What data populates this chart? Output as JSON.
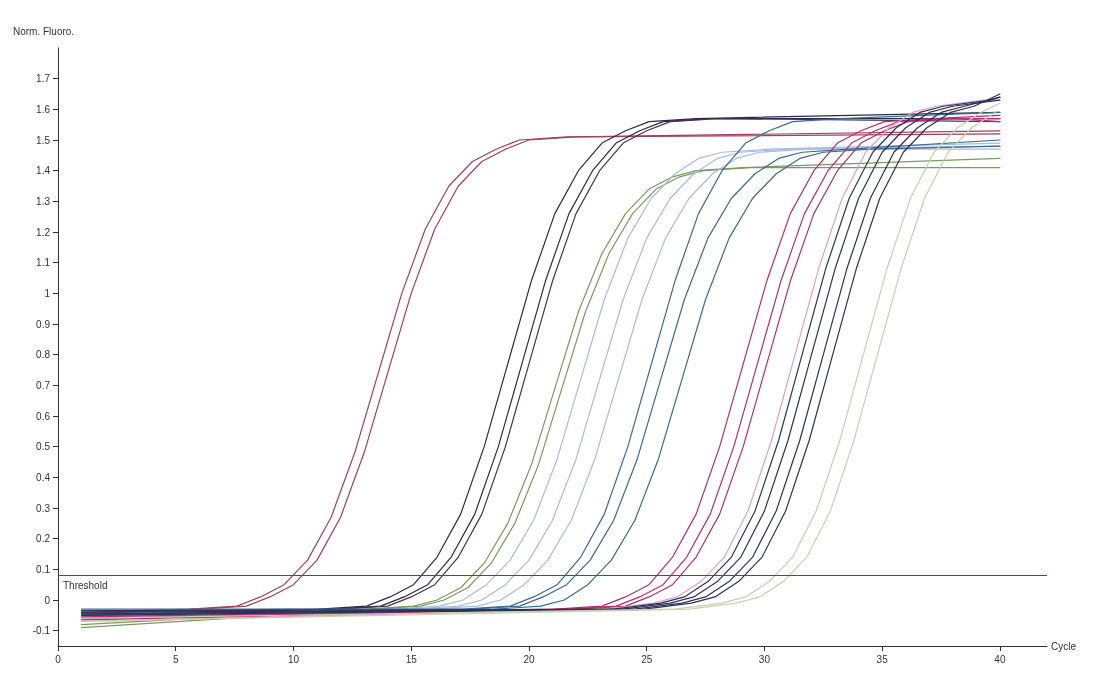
{
  "chart_data": {
    "type": "line",
    "xlabel": "Cycle",
    "ylabel": "Norm. Fluoro.",
    "xlim": [
      0,
      42
    ],
    "xticks": [
      0,
      5,
      10,
      15,
      20,
      25,
      30,
      35,
      40
    ],
    "ylim": [
      -0.15,
      1.8
    ],
    "yticks": [
      -0.1,
      0,
      0.1,
      0.2,
      0.3,
      0.4,
      0.5,
      0.6,
      0.7,
      0.8,
      0.9,
      1,
      1.1,
      1.2,
      1.3,
      1.4,
      1.5,
      1.6,
      1.7
    ],
    "grid": false,
    "marker": "none",
    "ref_lines": [
      {
        "axis": "y",
        "value": 0.08,
        "label": "Threshold",
        "color": "#8a3048"
      }
    ],
    "series": [
      {
        "color": "#a0405a",
        "x": [
          1,
          5.6,
          7.6,
          8.6,
          9.6,
          10.6,
          11.6,
          12.6,
          13.6,
          14.6,
          15.6,
          16.6,
          17.6,
          18.6,
          19.6,
          21.6,
          40
        ],
        "values": [
          -0.04,
          -0.03,
          -0.02,
          0.01,
          0.05,
          0.13,
          0.27,
          0.48,
          0.74,
          1.0,
          1.21,
          1.35,
          1.43,
          1.47,
          1.5,
          1.51,
          1.52
        ]
      },
      {
        "color": "#a0405a",
        "x": [
          1,
          6,
          8,
          9,
          10,
          11,
          12,
          13,
          14,
          15,
          16,
          17,
          18,
          19,
          20,
          22,
          40
        ],
        "values": [
          -0.045,
          -0.03,
          -0.02,
          0.01,
          0.05,
          0.13,
          0.27,
          0.48,
          0.74,
          1.0,
          1.21,
          1.35,
          1.43,
          1.47,
          1.5,
          1.51,
          1.53
        ]
      },
      {
        "color": "#2a2a4a",
        "x": [
          1,
          11.1,
          13.1,
          14.1,
          15.1,
          16.1,
          17.1,
          18.1,
          19.1,
          20.1,
          21.1,
          22.1,
          23.1,
          24.1,
          25.1,
          27.1,
          40
        ],
        "values": [
          -0.035,
          -0.03,
          -0.02,
          0.01,
          0.05,
          0.14,
          0.28,
          0.5,
          0.77,
          1.04,
          1.26,
          1.4,
          1.49,
          1.53,
          1.56,
          1.57,
          1.59
        ]
      },
      {
        "color": "#2a2a4a",
        "x": [
          1,
          11.7,
          13.7,
          14.7,
          15.7,
          16.7,
          17.7,
          18.7,
          19.7,
          20.7,
          21.7,
          22.7,
          23.7,
          24.7,
          25.7,
          27.7,
          40
        ],
        "values": [
          -0.05,
          -0.03,
          -0.02,
          0.01,
          0.05,
          0.14,
          0.28,
          0.5,
          0.77,
          1.04,
          1.26,
          1.4,
          1.49,
          1.53,
          1.56,
          1.57,
          1.57
        ]
      },
      {
        "color": "#4a3050",
        "x": [
          1,
          12,
          14,
          15,
          16,
          17,
          18,
          19,
          20,
          21,
          22,
          23,
          24,
          25,
          26,
          28,
          40
        ],
        "values": [
          -0.04,
          -0.03,
          -0.02,
          0.01,
          0.05,
          0.14,
          0.28,
          0.5,
          0.77,
          1.04,
          1.26,
          1.4,
          1.49,
          1.53,
          1.56,
          1.57,
          1.56
        ]
      },
      {
        "color": "#7a9a60",
        "x": [
          1,
          13.1,
          15.1,
          16.1,
          17.1,
          18.1,
          19.1,
          20.1,
          21.1,
          22.1,
          23.1,
          24.1,
          25.1,
          26.1,
          27.1,
          29.1,
          40
        ],
        "values": [
          -0.08,
          -0.03,
          -0.02,
          0.0,
          0.04,
          0.12,
          0.25,
          0.44,
          0.69,
          0.94,
          1.13,
          1.26,
          1.34,
          1.38,
          1.4,
          1.41,
          1.44
        ]
      },
      {
        "color": "#7a9a60",
        "x": [
          1,
          13.4,
          15.4,
          16.4,
          17.4,
          18.4,
          19.4,
          20.4,
          21.4,
          22.4,
          23.4,
          24.4,
          25.4,
          26.4,
          27.4,
          29.4,
          40
        ],
        "values": [
          -0.09,
          -0.03,
          -0.02,
          0.0,
          0.04,
          0.12,
          0.25,
          0.44,
          0.69,
          0.94,
          1.13,
          1.26,
          1.34,
          1.38,
          1.4,
          1.41,
          1.41
        ]
      },
      {
        "color": "#a8bce0",
        "x": [
          1,
          14.2,
          16.2,
          17.2,
          18.2,
          19.2,
          20.2,
          21.2,
          22.2,
          23.2,
          24.2,
          25.2,
          26.2,
          27.2,
          28.2,
          30.2,
          40
        ],
        "values": [
          -0.055,
          -0.03,
          -0.02,
          0.0,
          0.05,
          0.13,
          0.26,
          0.46,
          0.72,
          0.98,
          1.18,
          1.31,
          1.39,
          1.44,
          1.46,
          1.47,
          1.49
        ]
      },
      {
        "color": "#a8bce0",
        "x": [
          1,
          15,
          17,
          18,
          19,
          20,
          21,
          22,
          23,
          24,
          25,
          26,
          27,
          28,
          29,
          31,
          40
        ],
        "values": [
          -0.06,
          -0.03,
          -0.02,
          0.0,
          0.05,
          0.13,
          0.26,
          0.46,
          0.72,
          0.98,
          1.18,
          1.31,
          1.39,
          1.44,
          1.46,
          1.47,
          1.48
        ]
      },
      {
        "color": "#a8bce0",
        "x": [
          1,
          15.8,
          17.8,
          18.8,
          19.8,
          20.8,
          21.8,
          22.8,
          23.8,
          24.8,
          25.8,
          26.8,
          27.8,
          28.8,
          29.8,
          31.8,
          40
        ],
        "values": [
          -0.065,
          -0.03,
          -0.02,
          0.0,
          0.05,
          0.13,
          0.26,
          0.46,
          0.72,
          0.98,
          1.18,
          1.31,
          1.39,
          1.44,
          1.46,
          1.47,
          1.47
        ]
      },
      {
        "color": "#3a6a90",
        "x": [
          1,
          17.2,
          19.2,
          20.2,
          21.2,
          22.2,
          23.2,
          24.2,
          25.2,
          26.2,
          27.2,
          28.2,
          29.2,
          30.2,
          31.2,
          33.2,
          40
        ],
        "values": [
          -0.03,
          -0.03,
          -0.02,
          0.01,
          0.05,
          0.14,
          0.28,
          0.5,
          0.77,
          1.04,
          1.26,
          1.4,
          1.49,
          1.53,
          1.56,
          1.57,
          1.59
        ]
      },
      {
        "color": "#3a6a90",
        "x": [
          1,
          17.6,
          19.6,
          20.6,
          21.6,
          22.6,
          23.6,
          24.6,
          25.6,
          26.6,
          27.6,
          28.6,
          29.6,
          30.6,
          31.6,
          33.6,
          40
        ],
        "values": [
          -0.045,
          -0.03,
          -0.02,
          0.01,
          0.05,
          0.13,
          0.26,
          0.46,
          0.72,
          0.98,
          1.18,
          1.31,
          1.39,
          1.44,
          1.46,
          1.47,
          1.5
        ]
      },
      {
        "color": "#3a6a90",
        "x": [
          1,
          18.5,
          20.5,
          21.5,
          22.5,
          23.5,
          24.5,
          25.5,
          26.5,
          27.5,
          28.5,
          29.5,
          30.5,
          31.5,
          32.5,
          34.5,
          40
        ],
        "values": [
          -0.05,
          -0.03,
          -0.02,
          0.0,
          0.05,
          0.13,
          0.26,
          0.46,
          0.72,
          0.98,
          1.18,
          1.31,
          1.39,
          1.44,
          1.46,
          1.47,
          1.48
        ]
      },
      {
        "color": "#b03070",
        "x": [
          1,
          21.1,
          23.1,
          24.1,
          25.1,
          26.1,
          27.1,
          28.1,
          29.1,
          30.1,
          31.1,
          32.1,
          33.1,
          34.1,
          35.1,
          37.1,
          40
        ],
        "values": [
          -0.055,
          -0.03,
          -0.02,
          0.01,
          0.05,
          0.14,
          0.28,
          0.5,
          0.77,
          1.04,
          1.26,
          1.4,
          1.49,
          1.53,
          1.56,
          1.57,
          1.58
        ]
      },
      {
        "color": "#b03070",
        "x": [
          1,
          21.7,
          23.7,
          24.7,
          25.7,
          26.7,
          27.7,
          28.7,
          29.7,
          30.7,
          31.7,
          32.7,
          33.7,
          34.7,
          35.7,
          37.7,
          40
        ],
        "values": [
          -0.06,
          -0.03,
          -0.02,
          0.01,
          0.05,
          0.14,
          0.28,
          0.5,
          0.77,
          1.04,
          1.26,
          1.4,
          1.49,
          1.53,
          1.56,
          1.57,
          1.57
        ]
      },
      {
        "color": "#b03070",
        "x": [
          1,
          22.1,
          24.1,
          25.1,
          26.1,
          27.1,
          28.1,
          29.1,
          30.1,
          31.1,
          32.1,
          33.1,
          34.1,
          35.1,
          36.1,
          38.1,
          40
        ],
        "values": [
          -0.065,
          -0.03,
          -0.02,
          0.01,
          0.05,
          0.14,
          0.28,
          0.5,
          0.77,
          1.04,
          1.26,
          1.4,
          1.49,
          1.53,
          1.56,
          1.57,
          1.56
        ]
      },
      {
        "color": "#e0a0c0",
        "x": [
          1,
          23.3,
          25.3,
          26.3,
          27.3,
          28.3,
          29.3,
          30.3,
          31.3,
          32.3,
          33.3,
          34.3,
          35.3,
          36.3,
          37.3,
          39.3,
          40
        ],
        "values": [
          -0.07,
          -0.03,
          -0.01,
          0.01,
          0.06,
          0.14,
          0.29,
          0.52,
          0.8,
          1.08,
          1.31,
          1.46,
          1.54,
          1.59,
          1.61,
          1.63,
          1.63
        ]
      },
      {
        "color": "#303058",
        "x": [
          1,
          23.6,
          25.6,
          26.6,
          27.6,
          28.6,
          29.6,
          30.6,
          31.6,
          32.6,
          33.6,
          34.6,
          35.6,
          36.6,
          37.6,
          39.6,
          40
        ],
        "values": [
          -0.035,
          -0.03,
          -0.01,
          0.01,
          0.06,
          0.14,
          0.29,
          0.52,
          0.8,
          1.08,
          1.31,
          1.46,
          1.54,
          1.59,
          1.61,
          1.63,
          1.64
        ]
      },
      {
        "color": "#303058",
        "x": [
          1,
          24,
          26,
          27,
          28,
          29,
          30,
          31,
          32,
          33,
          34,
          35,
          36,
          37,
          38,
          40
        ],
        "values": [
          -0.04,
          -0.03,
          -0.01,
          0.01,
          0.06,
          0.14,
          0.29,
          0.52,
          0.8,
          1.08,
          1.31,
          1.46,
          1.54,
          1.59,
          1.61,
          1.63
        ]
      },
      {
        "color": "#303058",
        "x": [
          1,
          24.5,
          26.5,
          27.5,
          28.5,
          29.5,
          30.5,
          31.5,
          32.5,
          33.5,
          34.5,
          35.5,
          36.5,
          37.5,
          38.5,
          40
        ],
        "values": [
          -0.045,
          -0.03,
          -0.01,
          0.01,
          0.06,
          0.14,
          0.29,
          0.52,
          0.8,
          1.08,
          1.31,
          1.46,
          1.54,
          1.59,
          1.61,
          1.64
        ]
      },
      {
        "color": "#303058",
        "x": [
          1,
          24.9,
          26.9,
          27.9,
          28.9,
          29.9,
          30.9,
          31.9,
          32.9,
          33.9,
          34.9,
          35.9,
          36.9,
          37.9,
          38.9,
          40
        ],
        "values": [
          -0.05,
          -0.03,
          -0.01,
          0.01,
          0.06,
          0.14,
          0.29,
          0.52,
          0.8,
          1.08,
          1.31,
          1.46,
          1.54,
          1.59,
          1.61,
          1.65
        ]
      },
      {
        "color": "#c8d0b0",
        "x": [
          1,
          26.2,
          28.2,
          29.2,
          30.2,
          31.2,
          32.2,
          33.2,
          34.2,
          35.2,
          36.2,
          37.2,
          38.2,
          39.2,
          40
        ],
        "values": [
          -0.06,
          -0.03,
          -0.01,
          0.01,
          0.06,
          0.14,
          0.29,
          0.52,
          0.8,
          1.08,
          1.31,
          1.46,
          1.54,
          1.59,
          1.62
        ]
      },
      {
        "color": "#c8d0b0",
        "x": [
          1,
          26.8,
          28.8,
          29.8,
          30.8,
          31.8,
          32.8,
          33.8,
          34.8,
          35.8,
          36.8,
          37.8,
          38.8,
          39.8
        ],
        "values": [
          -0.07,
          -0.03,
          -0.01,
          0.01,
          0.06,
          0.14,
          0.29,
          0.52,
          0.8,
          1.08,
          1.31,
          1.46,
          1.54,
          1.59
        ]
      }
    ]
  }
}
